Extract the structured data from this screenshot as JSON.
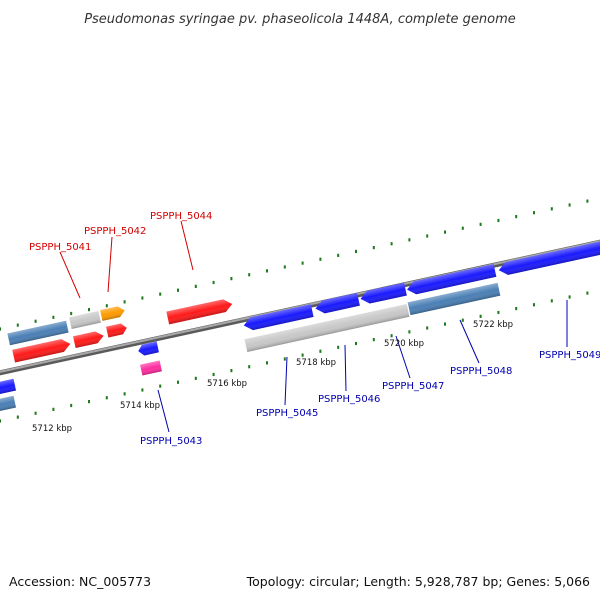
{
  "title": "Pseudomonas syringae pv. phaseolicola 1448A, complete genome",
  "footer": {
    "accession": "Accession: NC_005773",
    "summary": "Topology: circular; Length: 5,928,787 bp; Genes: 5,066"
  },
  "colors": {
    "backbone": "#808080",
    "ticks": "#1e7a1e",
    "label_forward": "#d40000",
    "label_reverse": "#0000b0",
    "gene_red": "#ff1a1a",
    "gene_blue": "#1a1aff",
    "gene_steel": "#4a7fb5",
    "gene_gray": "#c8c8c8",
    "gene_orange": "#ff9a00",
    "gene_pink": "#ff2ea0"
  },
  "ticks": [
    {
      "label": "5712 kbp"
    },
    {
      "label": "5714 kbp"
    },
    {
      "label": "5716 kbp"
    },
    {
      "label": "5718 kbp"
    },
    {
      "label": "5720 kbp"
    },
    {
      "label": "5722 kbp"
    }
  ],
  "gene_labels": [
    {
      "label": "PSPPH_5041",
      "strand": "forward"
    },
    {
      "label": "PSPPH_5042",
      "strand": "forward"
    },
    {
      "label": "PSPPH_5044",
      "strand": "forward"
    },
    {
      "label": "PSPPH_5043",
      "strand": "reverse"
    },
    {
      "label": "PSPPH_5045",
      "strand": "reverse"
    },
    {
      "label": "PSPPH_5046",
      "strand": "reverse"
    },
    {
      "label": "PSPPH_5047",
      "strand": "reverse"
    },
    {
      "label": "PSPPH_5048",
      "strand": "reverse"
    },
    {
      "label": "PSPPH_5049",
      "strand": "reverse"
    }
  ]
}
